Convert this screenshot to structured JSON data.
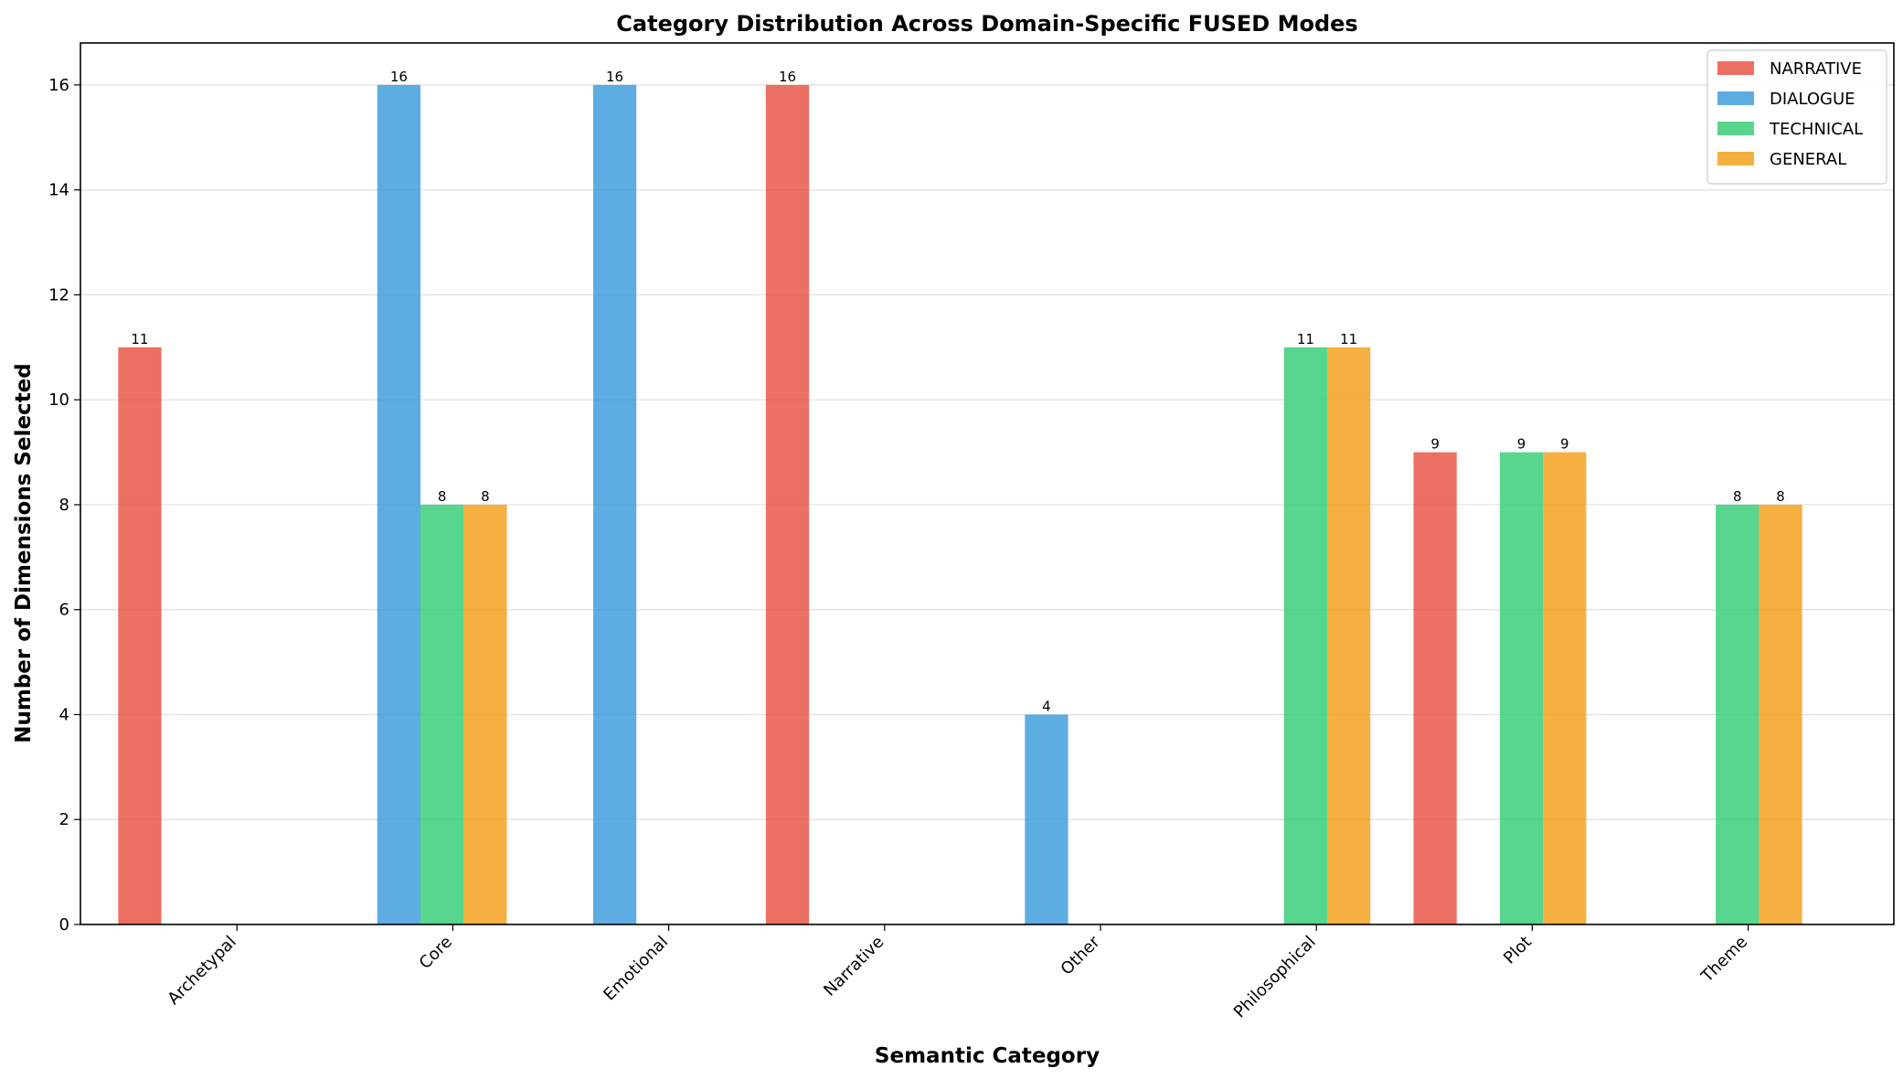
{
  "chart_data": {
    "type": "bar",
    "title": "Category Distribution Across Domain-Specific FUSED Modes",
    "xlabel": "Semantic Category",
    "ylabel": "Number of Dimensions Selected",
    "categories": [
      "Archetypal",
      "Core",
      "Emotional",
      "Narrative",
      "Other",
      "Philosophical",
      "Plot",
      "Theme"
    ],
    "ylim": [
      0,
      16.8
    ],
    "yticks": [
      0,
      2,
      4,
      6,
      8,
      10,
      12,
      14,
      16
    ],
    "grid": "y",
    "legend_position": "top-right",
    "series": [
      {
        "name": "NARRATIVE",
        "color": "#e74c3c",
        "values": [
          11,
          0,
          0,
          16,
          0,
          0,
          9,
          0
        ]
      },
      {
        "name": "DIALOGUE",
        "color": "#3498db",
        "values": [
          0,
          16,
          16,
          0,
          4,
          0,
          0,
          0
        ]
      },
      {
        "name": "TECHNICAL",
        "color": "#2ecc71",
        "values": [
          0,
          8,
          0,
          0,
          0,
          11,
          9,
          8
        ]
      },
      {
        "name": "GENERAL",
        "color": "#f39c12",
        "values": [
          0,
          8,
          0,
          0,
          0,
          11,
          9,
          8
        ]
      }
    ]
  }
}
